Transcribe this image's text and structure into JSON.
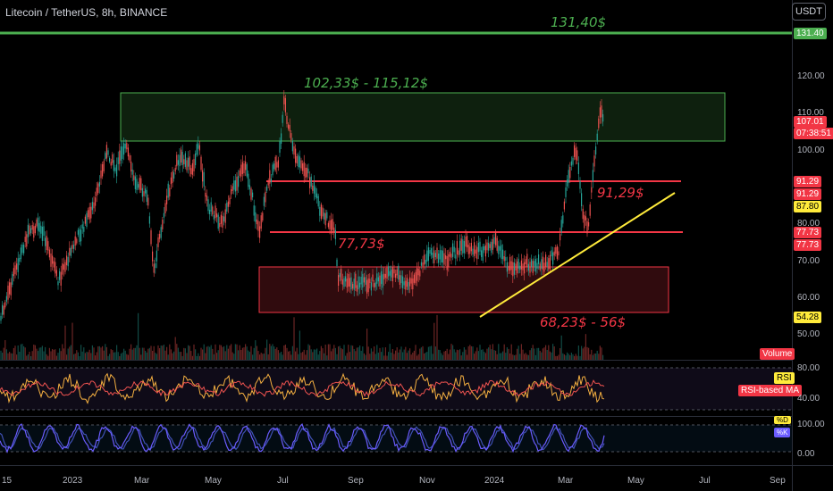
{
  "header": {
    "symbol_title": "Litecoin / TetherUS, 8h, BINANCE",
    "currency_button": "USDT"
  },
  "annotations": {
    "target": "131,40$",
    "resistance_zone": "102,33$ - 115,12$",
    "level_high": "91,29$",
    "level_low": "77,73$",
    "support_zone": "68,23$ - 56$"
  },
  "price_axis": {
    "ticks": [
      "120.00",
      "110.00",
      "100.00",
      "80.00",
      "70.00",
      "60.00",
      "50.00"
    ],
    "tags": {
      "target": "131.40",
      "last_price": "107.01",
      "countdown": "07:38:51",
      "level_high_a": "91.29",
      "level_high_b": "91.29",
      "ma_value": "87.80",
      "level_low_a": "77.73",
      "level_low_b": "77.73",
      "support_value": "54.28"
    }
  },
  "volume": {
    "label": "Volume"
  },
  "rsi_pane": {
    "label": "RSI",
    "ma_label": "RSI-based MA",
    "ticks": [
      "80.00",
      "40.00"
    ]
  },
  "stoch_pane": {
    "labels": [
      "%D",
      "%K"
    ],
    "ticks": [
      "100.00",
      "0.00"
    ]
  },
  "time_axis": {
    "labels": [
      "15",
      "2023",
      "Mar",
      "May",
      "Jul",
      "Sep",
      "Nov",
      "2024",
      "Mar",
      "May",
      "Jul",
      "Sep"
    ]
  },
  "colors": {
    "up": "#26a69a",
    "down": "#ef5350",
    "green_line": "#4caf50",
    "red_level": "#f23645",
    "trendline": "#ffeb3b",
    "rsi": "#f5b041",
    "stoch_k": "#6b5cff",
    "stoch_d": "#3f51b5"
  }
}
